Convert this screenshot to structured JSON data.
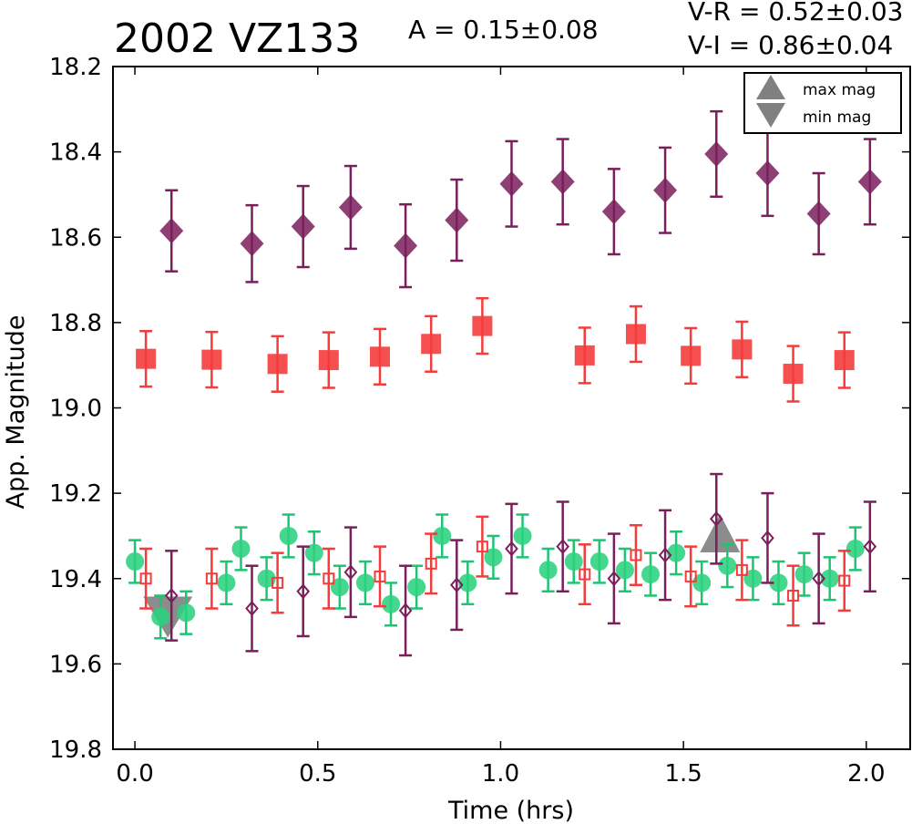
{
  "chart_data": {
    "type": "scatter",
    "title": "2002 VZ133",
    "amplitude_text": "A  = 0.15±0.08",
    "color_vr_text": "V-R  = 0.52±0.03",
    "color_vi_text": "V-I  = 0.86±0.04",
    "xlabel": "Time (hrs)",
    "ylabel": "App. Magnitude",
    "xlim": [
      -0.06,
      2.12
    ],
    "ylim": [
      19.8,
      18.2
    ],
    "y_inverted": true,
    "xticks": [
      "0.0",
      "0.5",
      "1.0",
      "1.5",
      "2.0"
    ],
    "xtick_values": [
      0.0,
      0.5,
      1.0,
      1.5,
      2.0
    ],
    "yticks": [
      "18.2",
      "18.4",
      "18.6",
      "18.8",
      "19.0",
      "19.2",
      "19.4",
      "19.6",
      "19.8"
    ],
    "ytick_values": [
      18.2,
      18.4,
      18.6,
      18.8,
      19.0,
      19.2,
      19.4,
      19.6,
      19.8
    ],
    "legend_position": "top-right",
    "legend": [
      {
        "label": "max mag",
        "marker": "triangle-up",
        "color": "#808080"
      },
      {
        "label": "min mag",
        "marker": "triangle-down",
        "color": "#808080"
      }
    ],
    "colors": {
      "purple": "#7a1f5c",
      "red": "#f43c3c",
      "green": "#2bd17e",
      "green_err": "#1fc472",
      "gray": "#808080"
    },
    "series": [
      {
        "marker": "diamond-filled",
        "color": "#7a1f5c",
        "points": [
          {
            "x": 0.1,
            "y": 18.585,
            "err": 0.095
          },
          {
            "x": 0.32,
            "y": 18.615,
            "err": 0.09
          },
          {
            "x": 0.46,
            "y": 18.575,
            "err": 0.095
          },
          {
            "x": 0.59,
            "y": 18.53,
            "err": 0.097
          },
          {
            "x": 0.74,
            "y": 18.62,
            "err": 0.097
          },
          {
            "x": 0.88,
            "y": 18.56,
            "err": 0.095
          },
          {
            "x": 1.03,
            "y": 18.475,
            "err": 0.1
          },
          {
            "x": 1.17,
            "y": 18.47,
            "err": 0.1
          },
          {
            "x": 1.31,
            "y": 18.54,
            "err": 0.1
          },
          {
            "x": 1.45,
            "y": 18.49,
            "err": 0.1
          },
          {
            "x": 1.59,
            "y": 18.405,
            "err": 0.1
          },
          {
            "x": 1.73,
            "y": 18.45,
            "err": 0.1
          },
          {
            "x": 1.87,
            "y": 18.545,
            "err": 0.095
          },
          {
            "x": 2.01,
            "y": 18.47,
            "err": 0.1
          }
        ]
      },
      {
        "marker": "square-filled",
        "color": "#f43c3c",
        "points": [
          {
            "x": 0.03,
            "y": 18.885,
            "err": 0.065
          },
          {
            "x": 0.21,
            "y": 18.887,
            "err": 0.065
          },
          {
            "x": 0.39,
            "y": 18.897,
            "err": 0.065
          },
          {
            "x": 0.53,
            "y": 18.888,
            "err": 0.065
          },
          {
            "x": 0.67,
            "y": 18.88,
            "err": 0.065
          },
          {
            "x": 0.81,
            "y": 18.85,
            "err": 0.065
          },
          {
            "x": 0.95,
            "y": 18.808,
            "err": 0.065
          },
          {
            "x": 1.23,
            "y": 18.877,
            "err": 0.065
          },
          {
            "x": 1.37,
            "y": 18.827,
            "err": 0.065
          },
          {
            "x": 1.52,
            "y": 18.878,
            "err": 0.065
          },
          {
            "x": 1.66,
            "y": 18.863,
            "err": 0.065
          },
          {
            "x": 1.8,
            "y": 18.92,
            "err": 0.065
          },
          {
            "x": 1.94,
            "y": 18.888,
            "err": 0.065
          }
        ]
      },
      {
        "marker": "circle-filled",
        "color": "#2bd17e",
        "points": [
          {
            "x": 0.0,
            "y": 19.36,
            "err": 0.05
          },
          {
            "x": 0.07,
            "y": 19.49,
            "err": 0.05
          },
          {
            "x": 0.14,
            "y": 19.48,
            "err": 0.05
          },
          {
            "x": 0.25,
            "y": 19.41,
            "err": 0.05
          },
          {
            "x": 0.29,
            "y": 19.33,
            "err": 0.05
          },
          {
            "x": 0.36,
            "y": 19.4,
            "err": 0.05
          },
          {
            "x": 0.42,
            "y": 19.3,
            "err": 0.05
          },
          {
            "x": 0.49,
            "y": 19.34,
            "err": 0.05
          },
          {
            "x": 0.56,
            "y": 19.42,
            "err": 0.05
          },
          {
            "x": 0.63,
            "y": 19.41,
            "err": 0.05
          },
          {
            "x": 0.7,
            "y": 19.46,
            "err": 0.05
          },
          {
            "x": 0.77,
            "y": 19.42,
            "err": 0.05
          },
          {
            "x": 0.84,
            "y": 19.3,
            "err": 0.05
          },
          {
            "x": 0.91,
            "y": 19.41,
            "err": 0.05
          },
          {
            "x": 0.98,
            "y": 19.35,
            "err": 0.05
          },
          {
            "x": 1.06,
            "y": 19.3,
            "err": 0.05
          },
          {
            "x": 1.13,
            "y": 19.38,
            "err": 0.05
          },
          {
            "x": 1.2,
            "y": 19.36,
            "err": 0.05
          },
          {
            "x": 1.27,
            "y": 19.36,
            "err": 0.05
          },
          {
            "x": 1.34,
            "y": 19.38,
            "err": 0.05
          },
          {
            "x": 1.41,
            "y": 19.39,
            "err": 0.05
          },
          {
            "x": 1.48,
            "y": 19.34,
            "err": 0.05
          },
          {
            "x": 1.55,
            "y": 19.41,
            "err": 0.05
          },
          {
            "x": 1.62,
            "y": 19.37,
            "err": 0.05
          },
          {
            "x": 1.69,
            "y": 19.4,
            "err": 0.05
          },
          {
            "x": 1.76,
            "y": 19.41,
            "err": 0.05
          },
          {
            "x": 1.83,
            "y": 19.39,
            "err": 0.05
          },
          {
            "x": 1.9,
            "y": 19.4,
            "err": 0.05
          },
          {
            "x": 1.97,
            "y": 19.33,
            "err": 0.05
          }
        ]
      },
      {
        "marker": "square-open",
        "color": "#f43c3c",
        "points": [
          {
            "x": 0.03,
            "y": 19.4,
            "err": 0.07
          },
          {
            "x": 0.21,
            "y": 19.4,
            "err": 0.07
          },
          {
            "x": 0.39,
            "y": 19.41,
            "err": 0.07
          },
          {
            "x": 0.53,
            "y": 19.4,
            "err": 0.07
          },
          {
            "x": 0.67,
            "y": 19.395,
            "err": 0.07
          },
          {
            "x": 0.81,
            "y": 19.365,
            "err": 0.07
          },
          {
            "x": 0.95,
            "y": 19.325,
            "err": 0.07
          },
          {
            "x": 1.23,
            "y": 19.39,
            "err": 0.07
          },
          {
            "x": 1.37,
            "y": 19.345,
            "err": 0.07
          },
          {
            "x": 1.52,
            "y": 19.395,
            "err": 0.07
          },
          {
            "x": 1.66,
            "y": 19.38,
            "err": 0.07
          },
          {
            "x": 1.8,
            "y": 19.44,
            "err": 0.07
          },
          {
            "x": 1.94,
            "y": 19.405,
            "err": 0.07
          }
        ]
      },
      {
        "marker": "diamond-open",
        "color": "#7a1f5c",
        "points": [
          {
            "x": 0.1,
            "y": 19.44,
            "err": 0.105
          },
          {
            "x": 0.32,
            "y": 19.47,
            "err": 0.1
          },
          {
            "x": 0.46,
            "y": 19.43,
            "err": 0.105
          },
          {
            "x": 0.59,
            "y": 19.385,
            "err": 0.105
          },
          {
            "x": 0.74,
            "y": 19.475,
            "err": 0.105
          },
          {
            "x": 0.88,
            "y": 19.415,
            "err": 0.105
          },
          {
            "x": 1.03,
            "y": 19.33,
            "err": 0.105
          },
          {
            "x": 1.17,
            "y": 19.325,
            "err": 0.105
          },
          {
            "x": 1.31,
            "y": 19.4,
            "err": 0.105
          },
          {
            "x": 1.45,
            "y": 19.345,
            "err": 0.105
          },
          {
            "x": 1.59,
            "y": 19.26,
            "err": 0.105
          },
          {
            "x": 1.73,
            "y": 19.305,
            "err": 0.105
          },
          {
            "x": 1.87,
            "y": 19.4,
            "err": 0.105
          },
          {
            "x": 2.01,
            "y": 19.325,
            "err": 0.105
          }
        ]
      }
    ],
    "markers": [
      {
        "type": "min",
        "marker": "triangle-down",
        "x": 0.09,
        "y": 19.47,
        "color": "#808080"
      },
      {
        "type": "max",
        "marker": "triangle-up",
        "x": 1.6,
        "y": 19.33,
        "color": "#808080"
      }
    ]
  }
}
